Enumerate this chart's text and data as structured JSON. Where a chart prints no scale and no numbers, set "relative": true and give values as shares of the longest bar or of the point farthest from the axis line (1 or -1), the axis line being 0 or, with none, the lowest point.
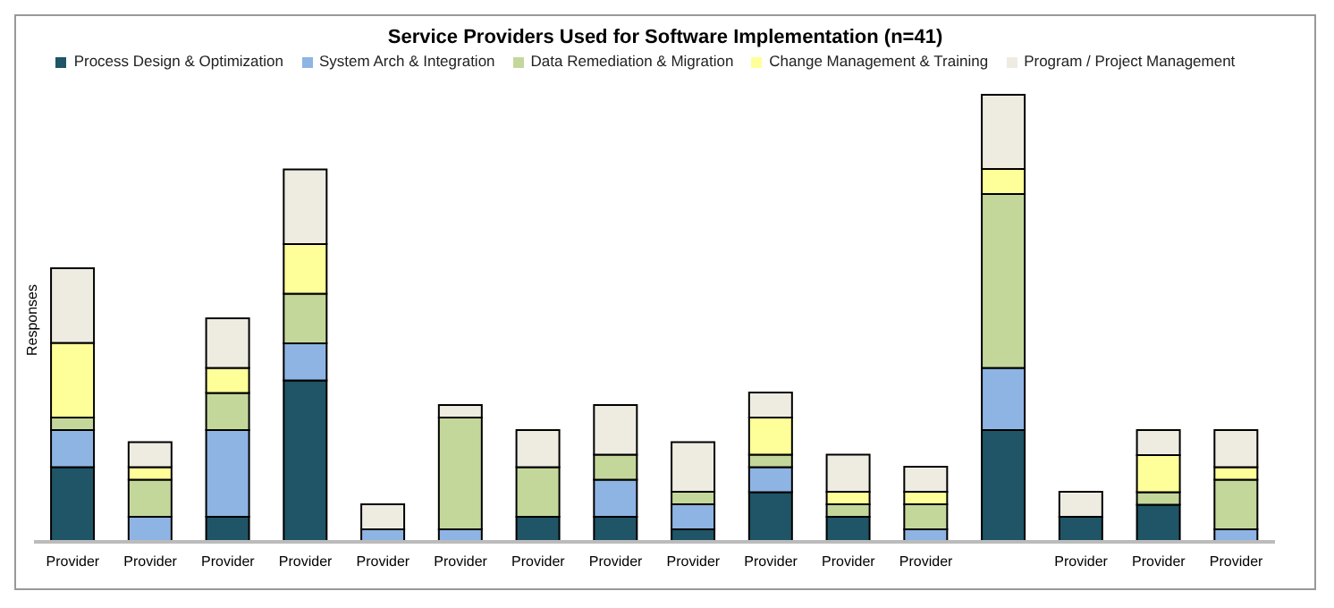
{
  "chart_data": {
    "type": "bar",
    "title": "Service Providers Used for Software Implementation  (n=41)",
    "ylabel": "Responses",
    "relative": true,
    "stacked": true,
    "legend": "top",
    "grid": false,
    "categories": [
      "Provider",
      "Provider",
      "Provider",
      "Provider",
      "Provider",
      "Provider",
      "Provider",
      "Provider",
      "Provider",
      "Provider",
      "Provider",
      "Provider",
      null,
      "Provider",
      "Provider",
      "Provider"
    ],
    "series": [
      {
        "name": "Process Design & Optimization",
        "color": "#1f5566",
        "values": [
          0.167,
          0,
          0.056,
          0.361,
          0,
          0,
          0.056,
          0.056,
          0.028,
          0.111,
          0.056,
          0,
          0.25,
          0.056,
          0.083,
          0
        ]
      },
      {
        "name": "System Arch & Integration",
        "color": "#8eb4e3",
        "values": [
          0.083,
          0.056,
          0.194,
          0.083,
          0.028,
          0.028,
          0,
          0.083,
          0.056,
          0.056,
          0,
          0.028,
          0.139,
          0,
          0,
          0.028
        ]
      },
      {
        "name": "Data Remediation & Migration",
        "color": "#c4d79b",
        "values": [
          0.028,
          0.083,
          0.083,
          0.111,
          0,
          0.25,
          0.111,
          0.056,
          0.028,
          0.028,
          0.028,
          0.056,
          0.389,
          0,
          0.028,
          0.111
        ]
      },
      {
        "name": "Change Management & Training",
        "color": "#ffff99",
        "values": [
          0.167,
          0.028,
          0.056,
          0.111,
          0,
          0,
          0,
          0,
          0,
          0.083,
          0.028,
          0.028,
          0.056,
          0,
          0.083,
          0.028
        ]
      },
      {
        "name": "Program / Project Management",
        "color": "#eeece1",
        "values": [
          0.167,
          0.056,
          0.111,
          0.167,
          0.056,
          0.028,
          0.083,
          0.111,
          0.111,
          0.056,
          0.083,
          0.056,
          0.166,
          0.056,
          0.056,
          0.083
        ]
      }
    ]
  }
}
